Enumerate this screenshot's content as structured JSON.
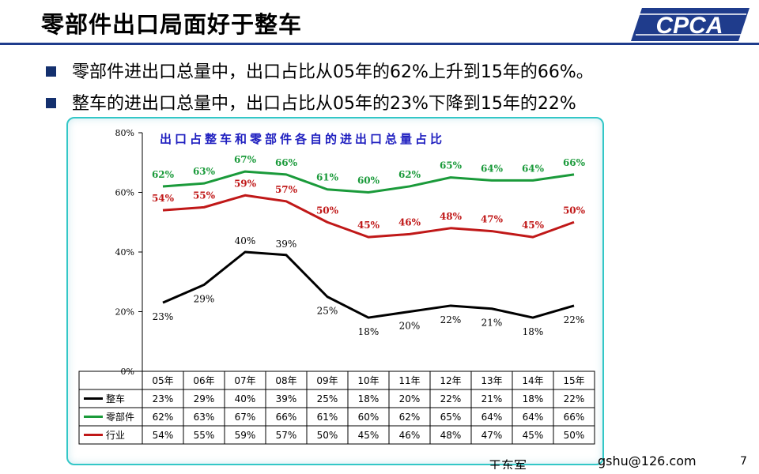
{
  "slide": {
    "title": "零部件出口局面好于整车",
    "bullets": [
      "零部件进出口总量中，出口占比从05年的62%上升到15年的66%。",
      "整车的进出口总量中，出口占比从05年的23%下降到15年的22%"
    ],
    "logo_text": "CPCA",
    "footer_email": "gshu@126.com",
    "footer_left": "王东军",
    "page_number": "7"
  },
  "colors": {
    "brand_blue": "#1f3c8c",
    "title_blue": "#2020c0",
    "series_整车": "#000000",
    "series_零部件": "#1a9a3a",
    "series_行业": "#c01818",
    "panel_border": "#33c7c7"
  },
  "chart_data": {
    "type": "line",
    "title": "出口占整车和零部件各自的进出口总量占比",
    "categories": [
      "05年",
      "06年",
      "07年",
      "08年",
      "09年",
      "10年",
      "11年",
      "12年",
      "13年",
      "14年",
      "15年"
    ],
    "ylim": [
      0,
      80
    ],
    "yticks": [
      "0%",
      "20%",
      "40%",
      "60%",
      "80%"
    ],
    "grid": false,
    "legend": "data-table-below",
    "series": [
      {
        "name": "整车",
        "values": [
          23,
          29,
          40,
          39,
          25,
          18,
          20,
          22,
          21,
          18,
          22
        ],
        "labels": [
          "23%",
          "29%",
          "40%",
          "39%",
          "25%",
          "18%",
          "20%",
          "22%",
          "21%",
          "18%",
          "22%"
        ]
      },
      {
        "name": "零部件",
        "values": [
          62,
          63,
          67,
          66,
          61,
          60,
          62,
          65,
          64,
          64,
          66
        ],
        "labels": [
          "62%",
          "63%",
          "67%",
          "66%",
          "61%",
          "60%",
          "62%",
          "65%",
          "64%",
          "64%",
          "66%"
        ]
      },
      {
        "name": "行业",
        "values": [
          54,
          55,
          59,
          57,
          50,
          45,
          46,
          48,
          47,
          45,
          50
        ],
        "labels": [
          "54%",
          "55%",
          "59%",
          "57%",
          "50%",
          "45%",
          "46%",
          "48%",
          "47%",
          "45%",
          "50%"
        ]
      }
    ]
  }
}
